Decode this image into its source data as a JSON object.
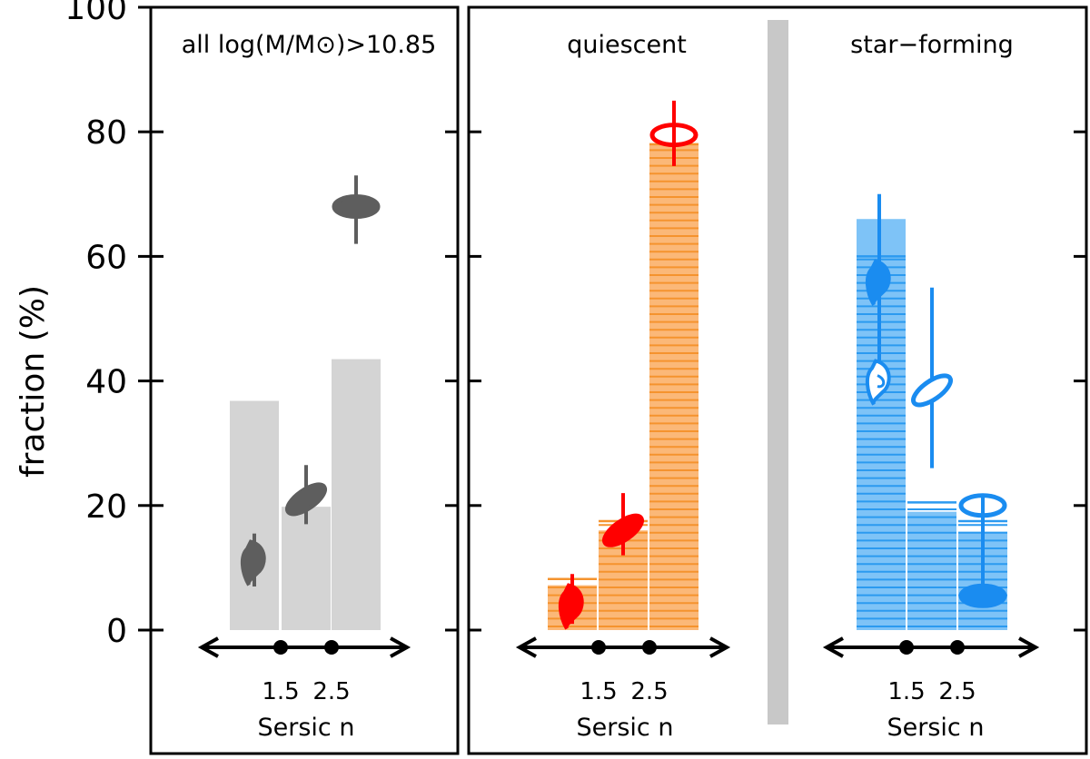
{
  "chart_data": {
    "type": "bar",
    "ylabel": "fraction (%)",
    "ylim": [
      -20,
      100
    ],
    "yticks": [
      "0",
      "20",
      "40",
      "60",
      "80",
      "100"
    ],
    "xlabel": "Sersic n",
    "x_tick_labels": [
      "1.5",
      "2.5"
    ],
    "colors": {
      "all_bar": "#d4d4d4",
      "all_marker": "#5e5e5e",
      "quiescent_bar": "#fbb878",
      "quiescent_line": "#f5932e",
      "quiescent_marker": "#ff0000",
      "starforming_bar": "#7ec3f7",
      "starforming_line": "#2b9af0",
      "starforming_marker": "#1a8cf0",
      "separator": "#c8c8c8"
    },
    "panels": [
      {
        "title": "all log(M/M⊙)>10.85",
        "style": "solid",
        "bars": [
          36.8,
          19.8,
          43.5
        ],
        "hatched": [],
        "points": [
          {
            "bin": 0,
            "value": 11,
            "err": [
              7,
              15.5
            ],
            "shape": "irregular",
            "filled": true
          },
          {
            "bin": 1,
            "value": 21,
            "err": [
              17,
              26.5
            ],
            "shape": "tilted-disk",
            "filled": true
          },
          {
            "bin": 2,
            "value": 68,
            "err": [
              62,
              73
            ],
            "shape": "ellipse",
            "filled": true
          }
        ]
      },
      {
        "title": "quiescent",
        "style": "hatched",
        "bars": [
          7.2,
          16,
          78
        ],
        "hatched": [
          8.2,
          17.5,
          78
        ],
        "points": [
          {
            "bin": 0,
            "value": 4,
            "err": [
              1,
              9
            ],
            "shape": "irregular",
            "filled": true
          },
          {
            "bin": 1,
            "value": 16,
            "err": [
              12,
              22
            ],
            "shape": "tilted-disk",
            "filled": true
          },
          {
            "bin": 2,
            "value": 79.5,
            "err": [
              74.5,
              85
            ],
            "shape": "ellipse",
            "filled": false
          }
        ]
      },
      {
        "title": "star−forming",
        "style": "hatched",
        "bars": [
          66,
          19,
          15.8
        ],
        "hatched": [
          60,
          20.5,
          17.5
        ],
        "points": [
          {
            "bin": 0,
            "value": 56,
            "err": [
              40,
              70
            ],
            "shape": "irregular",
            "filled": true
          },
          {
            "bin": 0,
            "value": 40,
            "err": [
              40,
              70
            ],
            "shape": "irregular",
            "filled": false
          },
          {
            "bin": 1,
            "value": 38.5,
            "err": [
              26,
              55
            ],
            "shape": "tilted-disk",
            "filled": false
          },
          {
            "bin": 2,
            "value": 5.5,
            "err": [
              5.5,
              20
            ],
            "shape": "ellipse",
            "filled": true
          },
          {
            "bin": 2,
            "value": 20,
            "err": [
              5.5,
              20
            ],
            "shape": "ellipse",
            "filled": false
          }
        ]
      }
    ]
  }
}
